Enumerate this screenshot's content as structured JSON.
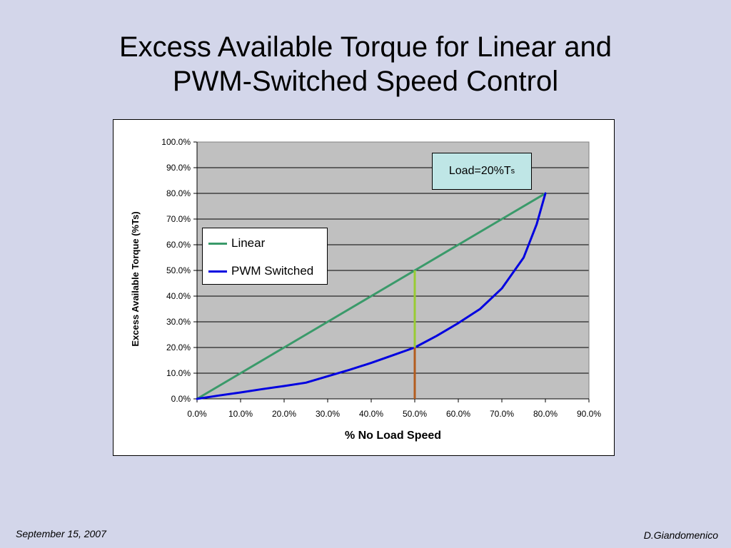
{
  "slide": {
    "title_line1": "Excess Available Torque for Linear and",
    "title_line2": "PWM-Switched Speed Control",
    "footer_date": "September 15, 2007",
    "footer_author": "D.Giandomenico"
  },
  "annotation": {
    "main": "Load=20%T",
    "subscript": "s"
  },
  "chart_data": {
    "type": "line",
    "title": "",
    "xlabel": "% No Load Speed",
    "ylabel": "Excess Available Torque (%Ts)",
    "xlim": [
      0,
      90
    ],
    "ylim": [
      0,
      100
    ],
    "x_ticks": [
      "0.0%",
      "10.0%",
      "20.0%",
      "30.0%",
      "40.0%",
      "50.0%",
      "60.0%",
      "70.0%",
      "80.0%",
      "90.0%"
    ],
    "y_ticks": [
      "0.0%",
      "10.0%",
      "20.0%",
      "30.0%",
      "40.0%",
      "50.0%",
      "60.0%",
      "70.0%",
      "80.0%",
      "90.0%",
      "100.0%"
    ],
    "grid": true,
    "plot_background": "#c0c0c0",
    "legend_position": "left-center",
    "series": [
      {
        "name": "Linear",
        "color": "#3a9a6a",
        "x": [
          0,
          10,
          20,
          30,
          40,
          50,
          60,
          70,
          80
        ],
        "y": [
          0,
          10,
          20,
          30,
          40,
          50,
          60,
          70,
          80
        ]
      },
      {
        "name": "PWM Switched",
        "color": "#0000e0",
        "x": [
          0,
          5,
          10,
          15,
          20,
          25,
          30,
          35,
          40,
          45,
          50,
          55,
          60,
          65,
          70,
          75,
          78,
          80
        ],
        "y": [
          0,
          1.3,
          2.5,
          3.8,
          5,
          6.3,
          8.8,
          11.3,
          14,
          17,
          20,
          24.5,
          29.5,
          35,
          43,
          55,
          68,
          80
        ]
      }
    ],
    "marker_segments": [
      {
        "x": 50,
        "y_from": 20,
        "y_to": 50,
        "color": "#99cc33"
      },
      {
        "x": 50,
        "y_from": 0,
        "y_to": 20,
        "color": "#b35c1e"
      }
    ]
  }
}
